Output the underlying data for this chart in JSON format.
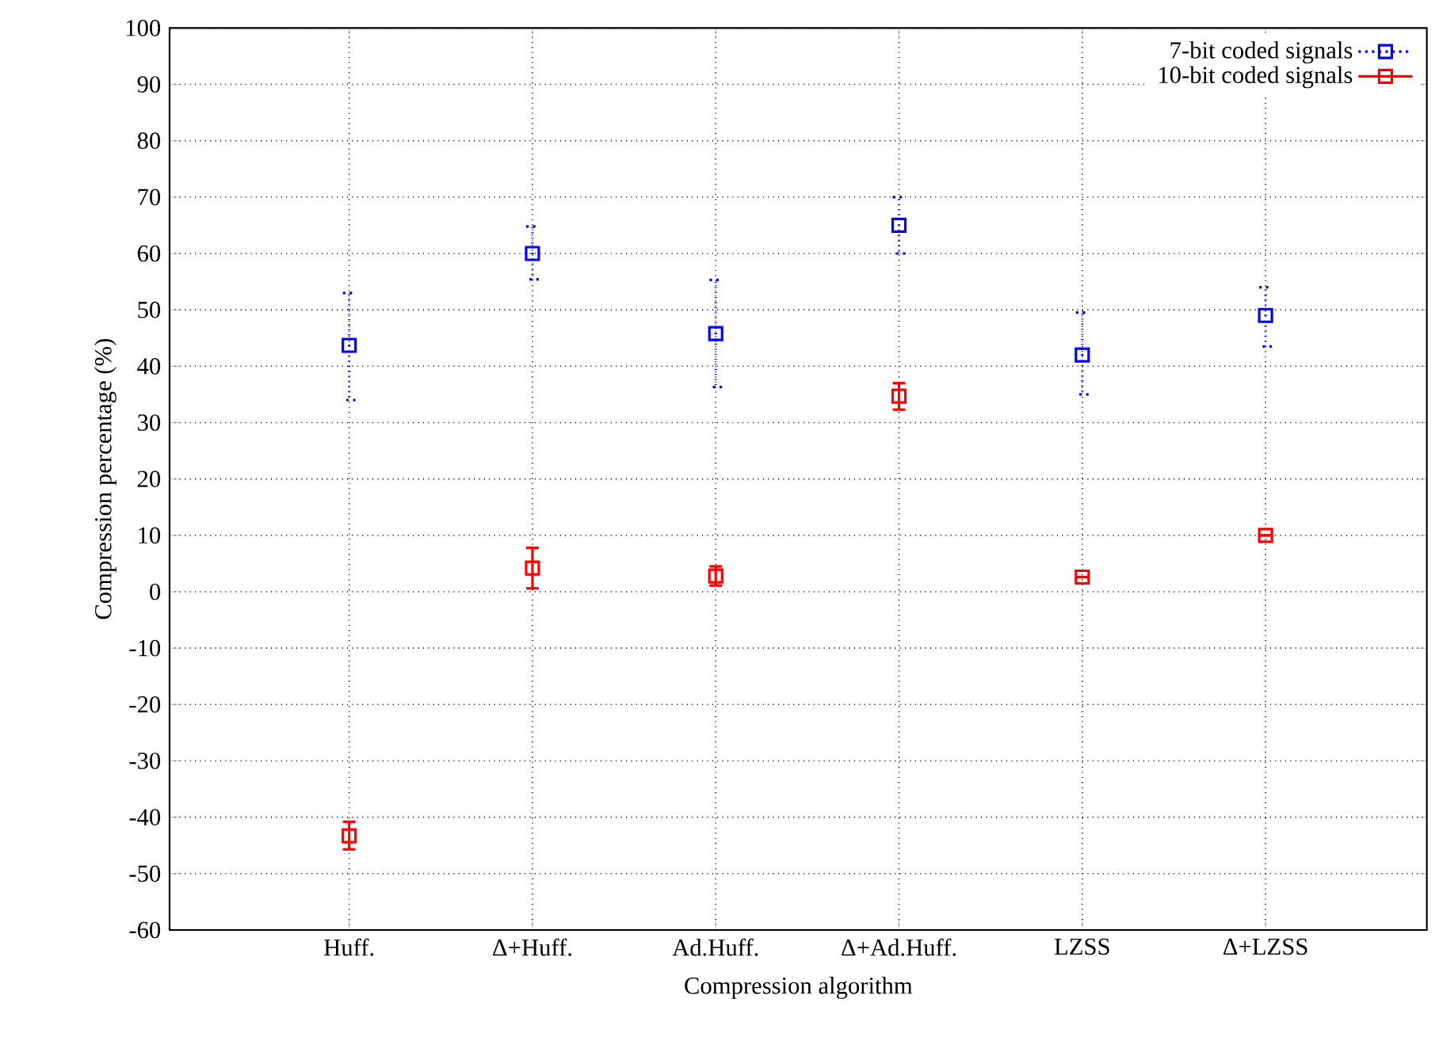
{
  "chart_data": {
    "type": "scatter",
    "xlabel": "Compression algorithm",
    "ylabel": "Compression percentage (%)",
    "categories": [
      "Huff.",
      "Δ+Huff.",
      "Ad.Huff.",
      "Δ+Ad.Huff.",
      "LZSS",
      "Δ+LZSS"
    ],
    "series": [
      {
        "name": "7-bit coded signals",
        "color": "#0000ff",
        "line_style": "dotted",
        "values": [
          43.7,
          60,
          45.8,
          65,
          42,
          49
        ],
        "errors": [
          [
            34,
            53
          ],
          [
            55.4,
            64.8
          ],
          [
            36.3,
            55.3
          ],
          [
            60,
            70
          ],
          [
            35,
            49.5
          ],
          [
            43.5,
            54
          ]
        ]
      },
      {
        "name": "10-bit coded signals",
        "color": "#ff0000",
        "line_style": "solid",
        "values": [
          -43.3,
          4.2,
          2.8,
          34.7,
          2.6,
          10
        ],
        "errors": [
          [
            -45.7,
            -40.8
          ],
          [
            0.6,
            7.8
          ],
          [
            1.1,
            4.5
          ],
          [
            32.3,
            37
          ],
          null,
          null
        ]
      }
    ],
    "marker": "square",
    "grid": true,
    "legend": "top right",
    "ylim": [
      -60,
      100
    ],
    "yticks": [
      -60,
      -50,
      -40,
      -30,
      -20,
      -10,
      0,
      10,
      20,
      30,
      40,
      50,
      60,
      70,
      80,
      90,
      100
    ]
  }
}
